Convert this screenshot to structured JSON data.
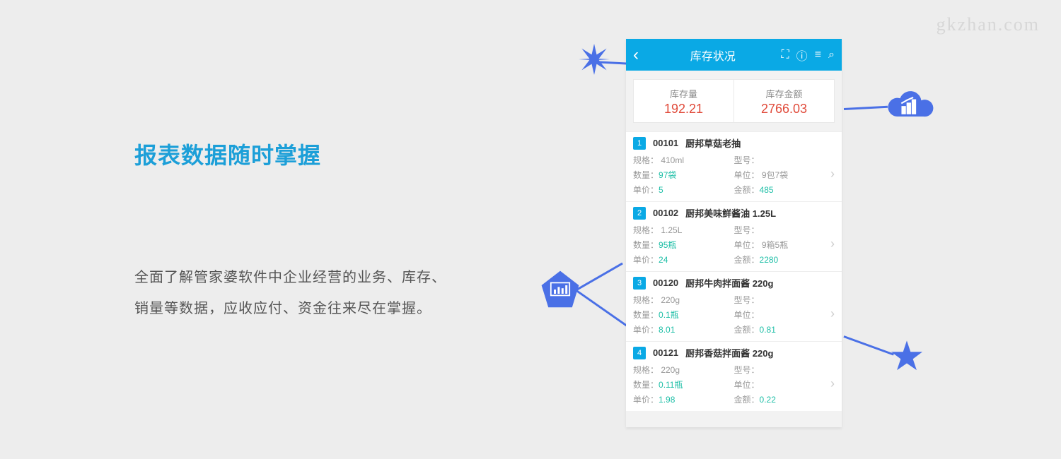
{
  "watermark": "gkzhan.com",
  "heading": "报表数据随时掌握",
  "description": "全面了解管家婆软件中企业经营的业务、库存、销量等数据，应收应付、资金往来尽在掌握。",
  "colors": {
    "background": "#ededed",
    "primary": "#0aa9e5",
    "heading": "#1c9fd8",
    "accent": "#4a70e6",
    "danger": "#e04a3a",
    "value_teal": "#1fbfa7",
    "muted": "#999999"
  },
  "phone": {
    "appbar": {
      "title": "库存状况",
      "icons": [
        "scan-icon",
        "info-icon",
        "list-icon",
        "search-icon"
      ]
    },
    "summary": [
      {
        "label": "库存量",
        "value": "192.21"
      },
      {
        "label": "库存金额",
        "value": "2766.03"
      }
    ],
    "field_labels": {
      "spec": "规格：",
      "model": "型号：",
      "qty": "数量：",
      "unit": "单位：",
      "price": "单价：",
      "amount": "金额："
    },
    "items": [
      {
        "idx": "1",
        "code": "00101",
        "name": "厨邦草菇老抽",
        "spec": "410ml",
        "model": "",
        "qty": "97袋",
        "unit": "9包7袋",
        "price": "5",
        "amount": "485"
      },
      {
        "idx": "2",
        "code": "00102",
        "name": "厨邦美味鲜酱油 1.25L",
        "spec": "1.25L",
        "model": "",
        "qty": "95瓶",
        "unit": "9箱5瓶",
        "price": "24",
        "amount": "2280"
      },
      {
        "idx": "3",
        "code": "00120",
        "name": "厨邦牛肉拌面酱 220g",
        "spec": "220g",
        "model": "",
        "qty": "0.1瓶",
        "unit": "",
        "price": "8.01",
        "amount": "0.81"
      },
      {
        "idx": "4",
        "code": "00121",
        "name": "厨邦香菇拌面酱 220g",
        "spec": "220g",
        "model": "",
        "qty": "0.11瓶",
        "unit": "",
        "price": "1.98",
        "amount": "0.22"
      }
    ]
  }
}
